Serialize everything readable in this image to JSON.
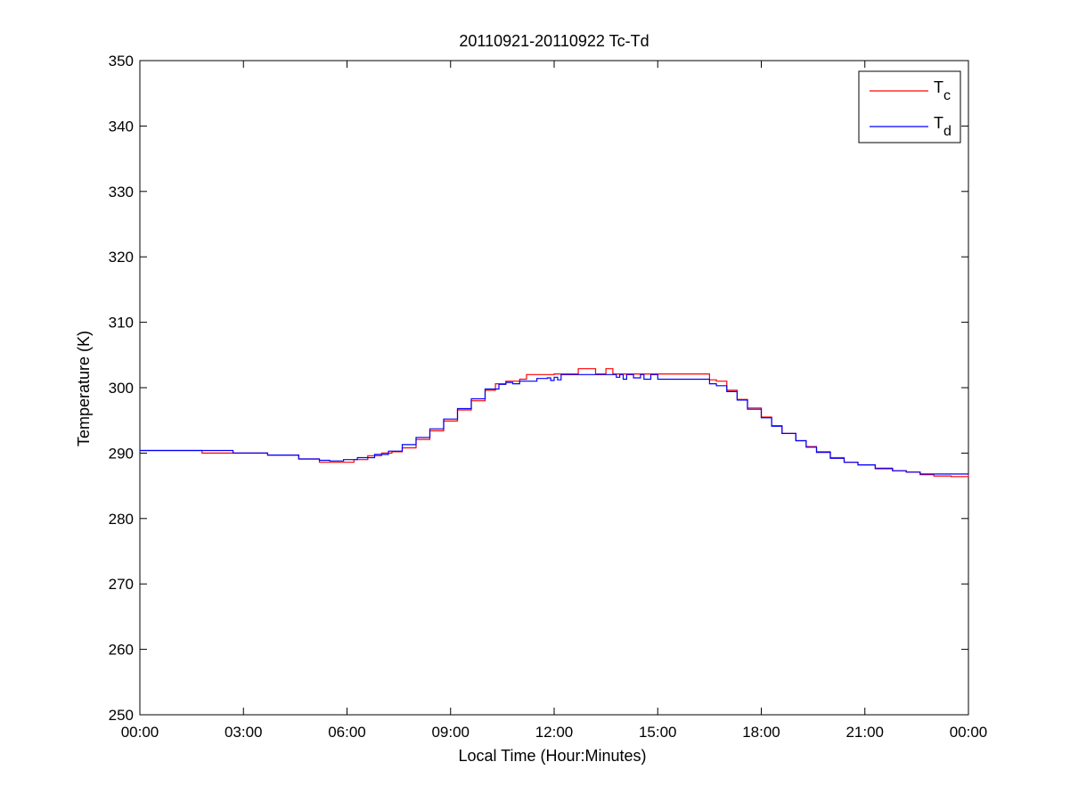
{
  "chart_data": {
    "type": "line",
    "title": "20110921-20110922 Tc-Td",
    "xlabel": "Local Time (Hour:Minutes)",
    "ylabel": "Temperature (K)",
    "xlim": [
      0,
      24
    ],
    "ylim": [
      250,
      350
    ],
    "x_ticks": [
      0,
      3,
      6,
      9,
      12,
      15,
      18,
      21,
      24
    ],
    "x_tick_labels": [
      "00:00",
      "03:00",
      "06:00",
      "09:00",
      "12:00",
      "15:00",
      "18:00",
      "21:00",
      "00:00"
    ],
    "y_ticks": [
      250,
      260,
      270,
      280,
      290,
      300,
      310,
      320,
      330,
      340,
      350
    ],
    "y_tick_labels": [
      "250",
      "260",
      "270",
      "280",
      "290",
      "300",
      "310",
      "320",
      "330",
      "340",
      "350"
    ],
    "grid": false,
    "legend_position": "top-right",
    "series": [
      {
        "name": "T",
        "subscript": "c",
        "color": "#ff0000",
        "x": [
          0,
          1.8,
          2.7,
          3.7,
          4.6,
          5.2,
          5.8,
          6.2,
          6.6,
          7.0,
          7.3,
          7.6,
          8.0,
          8.4,
          8.8,
          9.2,
          9.6,
          10.0,
          10.3,
          10.6,
          11.0,
          11.2,
          12.0,
          12.6,
          12.7,
          13.2,
          13.5,
          13.7,
          14.0,
          15.0,
          15.5,
          16.0,
          16.3,
          16.5,
          16.7,
          17.0,
          17.3,
          17.6,
          18.0,
          18.3,
          18.6,
          19.0,
          19.3,
          19.6,
          20.0,
          20.4,
          20.8,
          21.3,
          21.8,
          22.2,
          22.6,
          23.0,
          23.5,
          24.0
        ],
        "y": [
          290.4,
          290.0,
          290.0,
          289.7,
          289.1,
          288.6,
          288.6,
          289.0,
          289.6,
          290.0,
          290.2,
          290.8,
          292.1,
          293.4,
          294.9,
          296.6,
          298.0,
          299.6,
          300.6,
          301.0,
          301.3,
          302.0,
          302.1,
          302.1,
          302.9,
          302.1,
          302.9,
          302.1,
          302.1,
          302.1,
          302.1,
          302.1,
          302.1,
          301.2,
          301.0,
          299.6,
          298.2,
          296.9,
          295.5,
          294.2,
          293.0,
          291.9,
          291.0,
          290.2,
          289.3,
          288.6,
          288.2,
          287.6,
          287.3,
          287.1,
          286.7,
          286.5,
          286.4,
          286.7
        ]
      },
      {
        "name": "T",
        "subscript": "d",
        "color": "#0000ff",
        "x": [
          0,
          1.8,
          2.7,
          3.7,
          4.6,
          5.2,
          5.5,
          5.9,
          6.3,
          6.8,
          7.2,
          7.6,
          8.0,
          8.4,
          8.8,
          9.2,
          9.6,
          10.0,
          10.4,
          10.6,
          10.8,
          11.0,
          11.5,
          11.8,
          11.9,
          12.0,
          12.1,
          12.2,
          12.6,
          13.0,
          13.5,
          13.8,
          13.9,
          14.0,
          14.1,
          14.3,
          14.5,
          14.6,
          14.8,
          15.0,
          15.2,
          15.5,
          16.0,
          16.3,
          16.5,
          16.7,
          17.0,
          17.3,
          17.6,
          18.0,
          18.3,
          18.6,
          19.0,
          19.3,
          19.6,
          20.0,
          20.4,
          20.8,
          21.3,
          21.8,
          22.2,
          22.6,
          23.0,
          23.5,
          24.0
        ],
        "y": [
          290.4,
          290.4,
          290.0,
          289.7,
          289.1,
          288.9,
          288.8,
          289.0,
          289.3,
          289.8,
          290.3,
          291.3,
          292.4,
          293.7,
          295.2,
          296.8,
          298.3,
          299.8,
          300.5,
          300.8,
          300.6,
          301.0,
          301.4,
          301.5,
          301.1,
          301.6,
          301.2,
          302.0,
          302.0,
          302.0,
          302.0,
          301.6,
          302.0,
          301.3,
          302.0,
          301.5,
          302.0,
          301.3,
          302.0,
          301.3,
          301.3,
          301.3,
          301.3,
          301.3,
          300.6,
          300.3,
          299.4,
          298.1,
          296.7,
          295.4,
          294.1,
          293.0,
          291.9,
          290.9,
          290.1,
          289.2,
          288.6,
          288.2,
          287.7,
          287.3,
          287.1,
          286.8,
          286.8,
          286.8,
          286.8
        ]
      }
    ]
  }
}
